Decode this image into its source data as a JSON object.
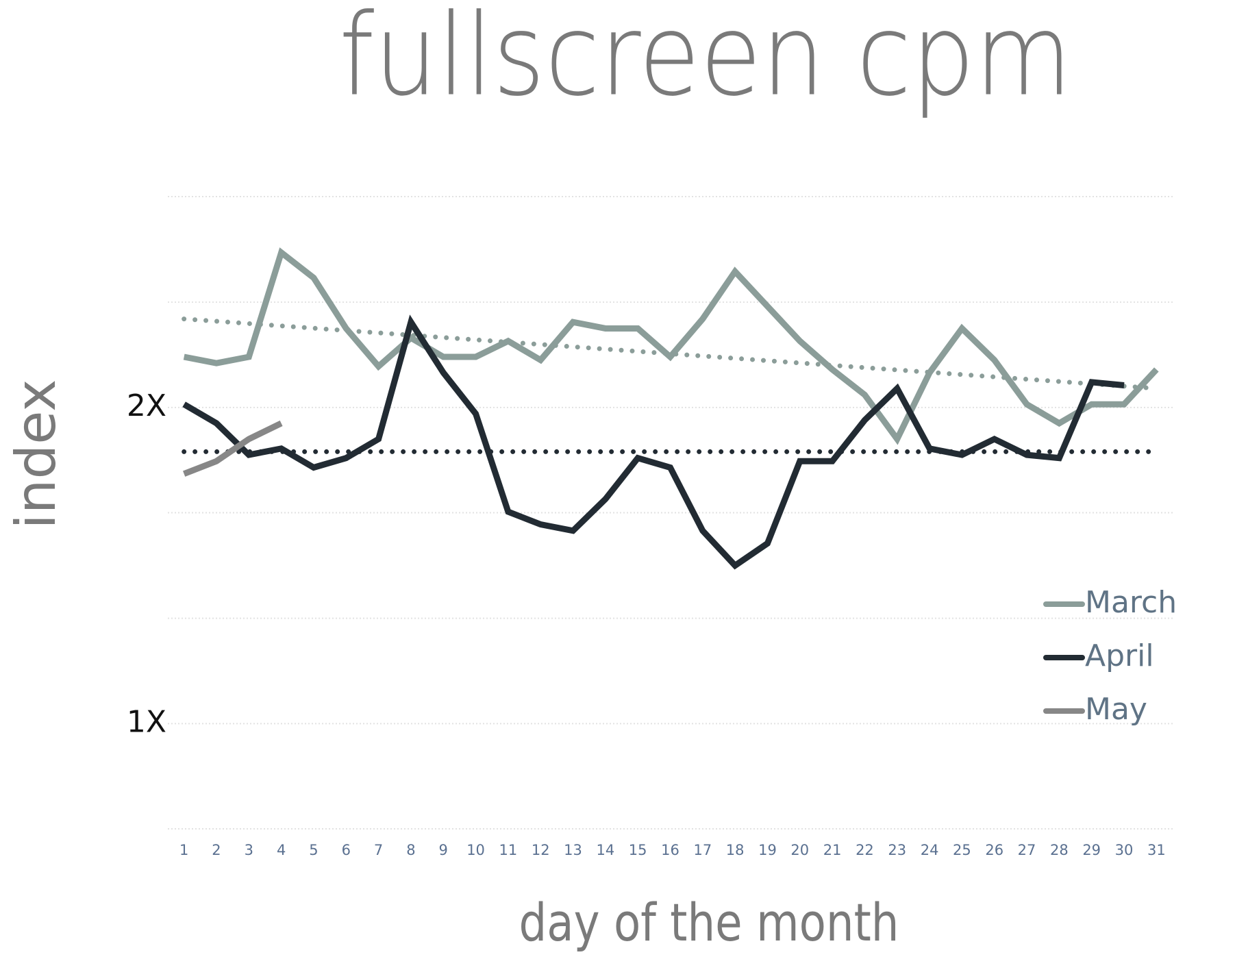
{
  "chart_data": {
    "type": "line",
    "title": "fullscreen cpm",
    "x_label": "day of the month",
    "y_label": "index",
    "x": [
      1,
      2,
      3,
      4,
      5,
      6,
      7,
      8,
      9,
      10,
      11,
      12,
      13,
      14,
      15,
      16,
      17,
      18,
      19,
      20,
      21,
      22,
      23,
      24,
      25,
      26,
      27,
      28,
      29,
      30,
      31
    ],
    "xlim": [
      0.5,
      31.5
    ],
    "xticks": [
      1,
      2,
      3,
      4,
      5,
      6,
      7,
      8,
      9,
      10,
      11,
      12,
      13,
      14,
      15,
      16,
      17,
      18,
      19,
      20,
      21,
      22,
      23,
      24,
      25,
      26,
      27,
      28,
      29,
      30,
      31
    ],
    "ylim": [
      0.667,
      2.667
    ],
    "yticks": [
      {
        "value": 0.667,
        "label": null
      },
      {
        "value": 1,
        "label": "1X"
      },
      {
        "value": 1.333,
        "label": null
      },
      {
        "value": 1.667,
        "label": null
      },
      {
        "value": 2,
        "label": "2X"
      },
      {
        "value": 2.333,
        "label": null
      },
      {
        "value": 2.667,
        "label": null
      }
    ],
    "grid": true,
    "legend": "right",
    "series": [
      {
        "name": "March",
        "color": "#8b9d99",
        "trend": [
          2.28,
          2.06
        ],
        "values": [
          2.16,
          2.14,
          2.16,
          2.49,
          2.41,
          2.25,
          2.13,
          2.22,
          2.16,
          2.16,
          2.21,
          2.15,
          2.27,
          2.25,
          2.25,
          2.16,
          2.28,
          2.43,
          2.32,
          2.21,
          2.12,
          2.04,
          1.9,
          2.11,
          2.25,
          2.15,
          2.01,
          1.95,
          2.01,
          2.01,
          2.12
        ]
      },
      {
        "name": "April",
        "color": "#222b33",
        "trend": [
          1.86,
          1.86
        ],
        "values": [
          2.01,
          1.95,
          1.85,
          1.87,
          1.81,
          1.84,
          1.9,
          2.27,
          2.11,
          1.98,
          1.67,
          1.63,
          1.61,
          1.71,
          1.84,
          1.81,
          1.61,
          1.5,
          1.57,
          1.83,
          1.83,
          1.96,
          2.06,
          1.87,
          1.85,
          1.9,
          1.85,
          1.84,
          2.08,
          2.07,
          null
        ]
      },
      {
        "name": "May",
        "color": "#878787",
        "values": [
          1.79,
          1.83,
          1.9,
          1.95,
          null,
          null,
          null,
          null,
          null,
          null,
          null,
          null,
          null,
          null,
          null,
          null,
          null,
          null,
          null,
          null,
          null,
          null,
          null,
          null,
          null,
          null,
          null,
          null,
          null,
          null,
          null
        ]
      }
    ]
  }
}
